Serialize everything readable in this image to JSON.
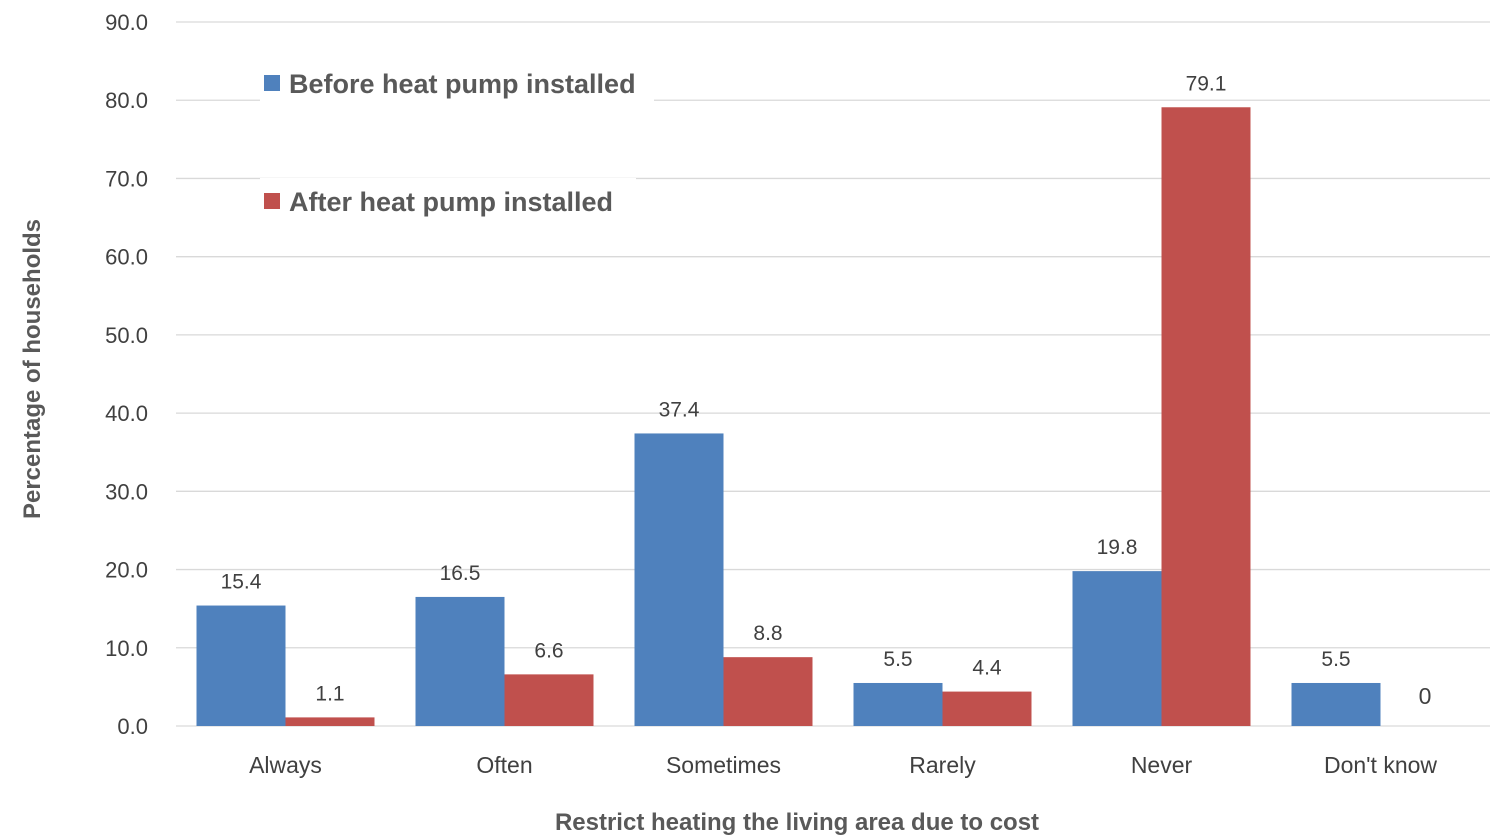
{
  "chart_data": {
    "type": "bar",
    "categories": [
      "Always",
      "Often",
      "Sometimes",
      "Rarely",
      "Never",
      "Don't know"
    ],
    "series": [
      {
        "name": "Before heat pump installed",
        "color": "#4f81bd",
        "values": [
          15.4,
          16.5,
          37.4,
          5.5,
          19.8,
          5.5
        ],
        "labels": [
          "15.4",
          "16.5",
          "37.4",
          "5.5",
          "19.8",
          "5.5"
        ]
      },
      {
        "name": "After heat pump installed",
        "color": "#c0504d",
        "values": [
          1.1,
          6.6,
          8.8,
          4.4,
          79.1,
          0
        ],
        "labels": [
          "1.1",
          "6.6",
          "8.8",
          "4.4",
          "79.1",
          "0"
        ]
      }
    ],
    "title": "",
    "xlabel": "Restrict heating the living area due to cost",
    "ylabel": "Percentage of households",
    "ylim": [
      0,
      90
    ],
    "yticks": [
      0,
      10,
      20,
      30,
      40,
      50,
      60,
      70,
      80,
      90
    ],
    "ytick_labels": [
      "0.0",
      "10.0",
      "20.0",
      "30.0",
      "40.0",
      "50.0",
      "60.0",
      "70.0",
      "80.0",
      "90.0"
    ],
    "grid": true,
    "legend_position": "top-left"
  }
}
